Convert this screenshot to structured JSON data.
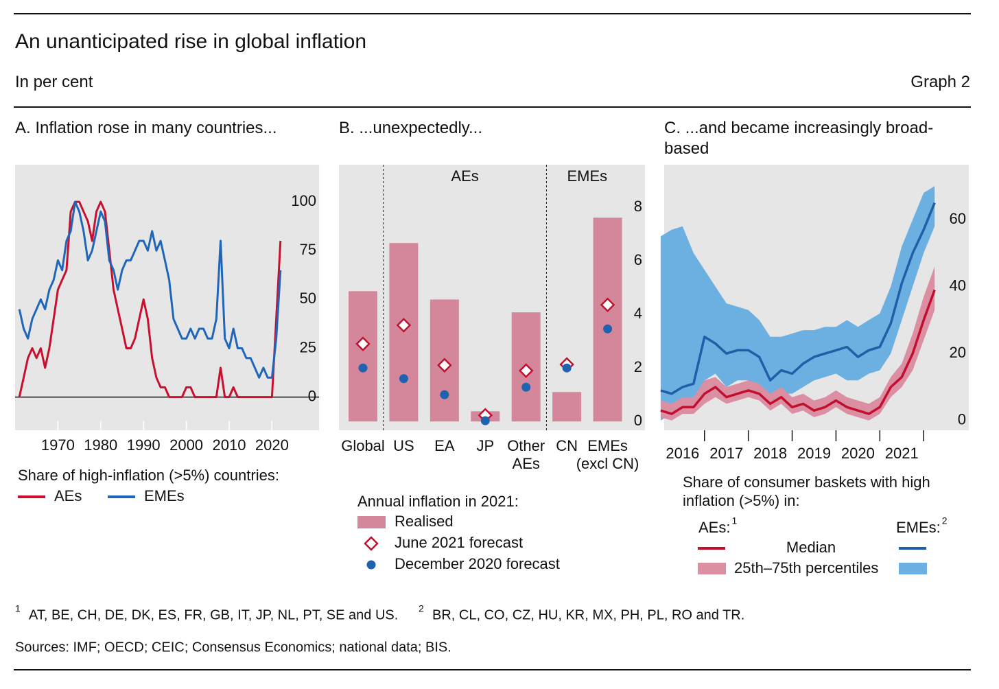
{
  "header": {
    "title": "An unanticipated rise in global inflation",
    "subtitle": "In per cent",
    "graph_label": "Graph 2"
  },
  "chart_data": [
    {
      "type": "line",
      "title": "A. Inflation rose in many countries...",
      "x": [
        1961,
        1962,
        1963,
        1964,
        1965,
        1966,
        1967,
        1968,
        1969,
        1970,
        1971,
        1972,
        1973,
        1974,
        1975,
        1976,
        1977,
        1978,
        1979,
        1980,
        1981,
        1982,
        1983,
        1984,
        1985,
        1986,
        1987,
        1988,
        1989,
        1990,
        1991,
        1992,
        1993,
        1994,
        1995,
        1996,
        1997,
        1998,
        1999,
        2000,
        2001,
        2002,
        2003,
        2004,
        2005,
        2006,
        2007,
        2008,
        2009,
        2010,
        2011,
        2012,
        2013,
        2014,
        2015,
        2016,
        2017,
        2018,
        2019,
        2020,
        2021,
        2022
      ],
      "series": [
        {
          "name": "AEs",
          "color": "#c8102e",
          "values": [
            0,
            10,
            20,
            25,
            20,
            25,
            15,
            25,
            40,
            55,
            60,
            65,
            95,
            100,
            100,
            95,
            90,
            80,
            95,
            100,
            95,
            75,
            55,
            45,
            35,
            25,
            25,
            30,
            40,
            50,
            40,
            20,
            10,
            5,
            5,
            0,
            0,
            0,
            0,
            5,
            5,
            0,
            0,
            0,
            0,
            0,
            0,
            15,
            0,
            0,
            5,
            0,
            0,
            0,
            0,
            0,
            0,
            0,
            0,
            0,
            40,
            80
          ]
        },
        {
          "name": "EMEs",
          "color": "#1f66b8",
          "values": [
            45,
            35,
            30,
            40,
            45,
            50,
            45,
            55,
            60,
            70,
            65,
            80,
            85,
            100,
            95,
            85,
            70,
            75,
            85,
            95,
            90,
            70,
            65,
            55,
            65,
            70,
            70,
            75,
            80,
            80,
            75,
            85,
            75,
            80,
            70,
            60,
            40,
            35,
            30,
            30,
            35,
            30,
            35,
            35,
            30,
            30,
            40,
            80,
            30,
            25,
            35,
            25,
            25,
            20,
            20,
            15,
            10,
            15,
            10,
            10,
            30,
            65
          ]
        }
      ],
      "xlim": [
        1960,
        2031
      ],
      "xticks": [
        1970,
        1980,
        1990,
        2000,
        2010,
        2020
      ],
      "ylim": [
        -17,
        119
      ],
      "yticks": [
        0,
        25,
        50,
        75,
        100
      ],
      "legend_title": "Share of high-inflation (>5%) countries:"
    },
    {
      "type": "bar",
      "title": "B. ...unexpectedly...",
      "categories": [
        "Global",
        "US",
        "EA",
        "JP",
        "Other\nAEs",
        "CN",
        "EMEs\n(excl CN)"
      ],
      "groups": [
        "AEs",
        "EMEs"
      ],
      "series": [
        {
          "name": "Realised",
          "mark": "bar",
          "color": "#d4879b",
          "values": [
            4.87,
            6.67,
            4.56,
            0.38,
            4.08,
            1.1,
            7.62
          ]
        },
        {
          "name": "June 2021 forecast",
          "mark": "diamond",
          "color": "#c0102e",
          "values": [
            2.9,
            3.6,
            2.1,
            0.23,
            1.9,
            2.13,
            4.36
          ]
        },
        {
          "name": "December 2020 forecast",
          "mark": "dot",
          "color": "#1f63b0",
          "values": [
            2.0,
            1.6,
            1.0,
            0.03,
            1.28,
            2.0,
            3.46
          ]
        }
      ],
      "ylim": [
        -0.33,
        9.6
      ],
      "yticks": [
        0,
        2,
        4,
        6,
        8
      ],
      "legend_title": "Annual inflation in 2021:"
    },
    {
      "type": "band",
      "title": "C. ...and became increasingly broad-based",
      "x": [
        2016,
        2016.25,
        2016.5,
        2016.75,
        2017,
        2017.25,
        2017.5,
        2017.75,
        2018,
        2018.25,
        2018.5,
        2018.75,
        2019,
        2019.25,
        2019.5,
        2019.75,
        2020,
        2020.25,
        2020.5,
        2020.75,
        2021,
        2021.25,
        2021.5,
        2021.75,
        2022,
        2022.25
      ],
      "series": [
        {
          "color": "#c0102e",
          "band_color": "#dc8fa2",
          "values": [
            3,
            2,
            4,
            4,
            8,
            10,
            7,
            8,
            9,
            8,
            5,
            7,
            4,
            5,
            3,
            4,
            6,
            4,
            3,
            2,
            4,
            10,
            13,
            20,
            30,
            39
          ],
          "low": [
            1,
            0,
            2,
            2,
            5,
            7,
            5,
            6,
            7,
            6,
            3,
            5,
            2,
            3,
            1,
            2,
            4,
            2,
            1,
            0,
            2,
            7,
            10,
            15,
            24,
            33
          ],
          "high": [
            6,
            5,
            7,
            7,
            12,
            13,
            10,
            11,
            12,
            11,
            8,
            10,
            7,
            8,
            6,
            7,
            9,
            7,
            6,
            5,
            7,
            13,
            17,
            26,
            37,
            46
          ]
        },
        {
          "color": "#1f5fa8",
          "band_color": "#6cb0e2",
          "values": [
            9,
            8,
            10,
            11,
            25,
            23,
            20,
            21,
            21,
            19,
            12,
            15,
            14,
            17,
            19,
            20,
            21,
            22,
            19,
            21,
            22,
            29,
            41,
            50,
            57,
            65
          ],
          "low": [
            0,
            2,
            3,
            5,
            12,
            14,
            10,
            12,
            12,
            8,
            5,
            8,
            8,
            10,
            12,
            13,
            14,
            12,
            12,
            14,
            15,
            20,
            30,
            40,
            50,
            58
          ],
          "high": [
            55,
            57,
            58,
            50,
            45,
            40,
            35,
            34,
            33,
            30,
            25,
            25,
            26,
            27,
            27,
            28,
            28,
            30,
            28,
            30,
            32,
            40,
            52,
            60,
            68,
            70
          ]
        }
      ],
      "xlim": [
        2016.08,
        2023.03
      ],
      "xticks": [
        2017,
        2018,
        2019,
        2020,
        2021,
        2022
      ],
      "xtick_labels": [
        {
          "value": 2016.5,
          "label": "2016"
        },
        {
          "value": 2017.5,
          "label": "2017"
        },
        {
          "value": 2018.5,
          "label": "2018"
        },
        {
          "value": 2019.5,
          "label": "2019"
        },
        {
          "value": 2020.5,
          "label": "2020"
        },
        {
          "value": 2021.5,
          "label": "2021"
        }
      ],
      "ylim": [
        -2.9,
        76.4
      ],
      "yticks": [
        0,
        20,
        40,
        60
      ],
      "legend_title": "Share of consumer baskets with high inflation (>5%) in:",
      "legend": {
        "columns": [
          {
            "label": "AEs:",
            "note": "1"
          },
          {
            "label": "EMEs:",
            "note": "2"
          }
        ],
        "rows": [
          "Median",
          "25th–75th percentiles"
        ]
      }
    }
  ],
  "footnotes": [
    {
      "mark": "1",
      "text": "AT, BE, CH, DE, DK, ES, FR, GB, IT, JP, NL, PT, SE and US."
    },
    {
      "mark": "2",
      "text": "BR, CL, CO, CZ, HU, KR, MX, PH, PL, RO and TR."
    }
  ],
  "sources": "Sources: IMF; OECD; CEIC; Consensus Economics; national data; BIS."
}
